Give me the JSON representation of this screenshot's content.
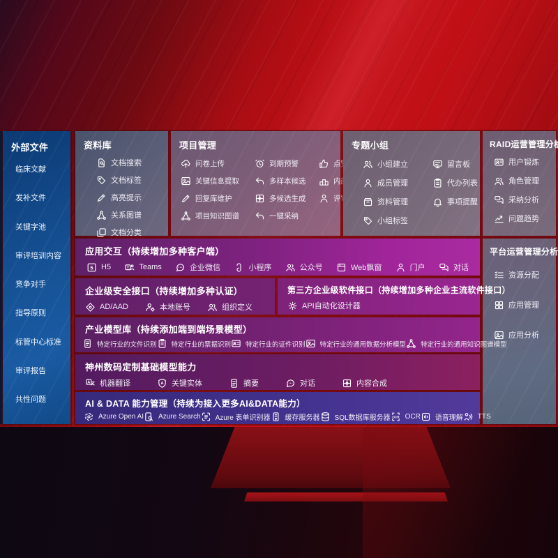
{
  "colors": {
    "background_red": "#c41117",
    "sidebar_blue": "#14508f",
    "purple_row": "#8f2488",
    "indigo_row": "#443390",
    "panel_gray": "#6d5f74"
  },
  "panels": {
    "external": {
      "title": "外部文件",
      "items": [
        {
          "label": "临床文献"
        },
        {
          "label": "发补文件"
        },
        {
          "label": "关键字池"
        },
        {
          "label": "审评培训内容"
        },
        {
          "label": "竞争对手"
        },
        {
          "label": "指导原则"
        },
        {
          "label": "标管中心标准"
        },
        {
          "label": "审评报告"
        },
        {
          "label": "共性问题"
        }
      ]
    },
    "library": {
      "title": "资料库",
      "items": [
        {
          "icon": "doc-search",
          "label": "文档搜索"
        },
        {
          "icon": "tag",
          "label": "文档标签"
        },
        {
          "icon": "pen",
          "label": "高亮提示"
        },
        {
          "icon": "network",
          "label": "关系图谱"
        },
        {
          "icon": "copy",
          "label": "文档分类"
        }
      ]
    },
    "project": {
      "title": "项目管理",
      "items": [
        {
          "icon": "cloud-up",
          "label": "问卷上传"
        },
        {
          "icon": "alarm",
          "label": "到期预警"
        },
        {
          "icon": "thumb",
          "label": "点赞感谢"
        },
        {
          "icon": "image",
          "label": "关键信息提取"
        },
        {
          "icon": "reply",
          "label": "多样本候选"
        },
        {
          "icon": "podium",
          "label": "内部专家排名"
        },
        {
          "icon": "pen",
          "label": "回复库维护"
        },
        {
          "icon": "compose",
          "label": "多候选生成"
        },
        {
          "icon": "person",
          "label": "评审员画像"
        },
        {
          "icon": "network",
          "label": "项目知识图谱"
        },
        {
          "icon": "reply",
          "label": "一键采纳"
        }
      ]
    },
    "groups": {
      "title": "专题小组",
      "items": [
        {
          "icon": "people",
          "label": "小组建立"
        },
        {
          "icon": "bbs",
          "label": "留言板"
        },
        {
          "icon": "person",
          "label": "成员管理"
        },
        {
          "icon": "clipboard",
          "label": "代办列表"
        },
        {
          "icon": "box",
          "label": "资料管理"
        },
        {
          "icon": "bell",
          "label": "事项提醒"
        },
        {
          "icon": "tag",
          "label": "小组标签"
        }
      ]
    },
    "raid": {
      "title": "RAID运营管理分析",
      "items": [
        {
          "icon": "idcard",
          "label": "用户锻炼"
        },
        {
          "icon": "people",
          "label": "角色管理"
        },
        {
          "icon": "chat2",
          "label": "采纳分析"
        },
        {
          "icon": "chart",
          "label": "问题趋势"
        }
      ]
    },
    "platform": {
      "title": "平台运营管理分析",
      "items": [
        {
          "icon": "list",
          "label": "资源分配"
        },
        {
          "icon": "grid",
          "label": "应用管理"
        },
        {
          "icon": "image",
          "label": "应用分析"
        }
      ]
    },
    "app_interaction": {
      "title": "应用交互（持续增加多种客户端）",
      "items": [
        {
          "icon": "h5",
          "label": "H5"
        },
        {
          "icon": "teams",
          "label": "Teams"
        },
        {
          "icon": "chat",
          "label": "企业微信"
        },
        {
          "icon": "mini",
          "label": "小程序"
        },
        {
          "icon": "people",
          "label": "公众号"
        },
        {
          "icon": "window",
          "label": "Web飘窗"
        },
        {
          "icon": "person",
          "label": "门户"
        },
        {
          "icon": "chat2",
          "label": "对话"
        }
      ]
    },
    "security": {
      "title": "企业级安全接口（持续增加多种认证）",
      "items": [
        {
          "icon": "diamond",
          "label": "AD/AAD"
        },
        {
          "icon": "person-gear",
          "label": "本地账号"
        },
        {
          "icon": "people",
          "label": "组织定义"
        }
      ]
    },
    "third_party": {
      "title": "第三方企业级软件接口（持续增加多种企业主流软件接口）",
      "items": [
        {
          "icon": "gear",
          "label": "API自动化设计器"
        }
      ]
    },
    "industry_models": {
      "title": "产业模型库（持续添加端到端场景模型）",
      "items": [
        {
          "icon": "doc",
          "label": "特定行业的文件识别"
        },
        {
          "icon": "clipboard",
          "label": "特定行业的票据识别"
        },
        {
          "icon": "idcard",
          "label": "特定行业的证件识别"
        },
        {
          "icon": "image",
          "label": "特定行业的通用数据分析模型"
        },
        {
          "icon": "network",
          "label": "特定行业的通用知识图谱模型"
        }
      ]
    },
    "base_models": {
      "title": "神州数码定制基础模型能力",
      "items": [
        {
          "icon": "translate",
          "label": "机器翻译"
        },
        {
          "icon": "shield-a",
          "label": "关键实体"
        },
        {
          "icon": "doc",
          "label": "摘要"
        },
        {
          "icon": "chat",
          "label": "对话"
        },
        {
          "icon": "compose",
          "label": "内容合成"
        }
      ]
    },
    "ai_data": {
      "title": "AI & DATA 能力管理（持续为接入更多AI&DATA能力）",
      "items": [
        {
          "icon": "openai",
          "label": "Azure Open AI"
        },
        {
          "icon": "search-doc",
          "label": "Azure Search"
        },
        {
          "icon": "brackets",
          "label": "Azure 表单识别器"
        },
        {
          "icon": "server",
          "label": "缓存服务器"
        },
        {
          "icon": "db",
          "label": "SQL数据库服务器"
        },
        {
          "icon": "ocr",
          "label": "OCR"
        },
        {
          "icon": "voice",
          "label": "语音理解"
        },
        {
          "icon": "tts",
          "label": "TTS"
        }
      ]
    }
  }
}
